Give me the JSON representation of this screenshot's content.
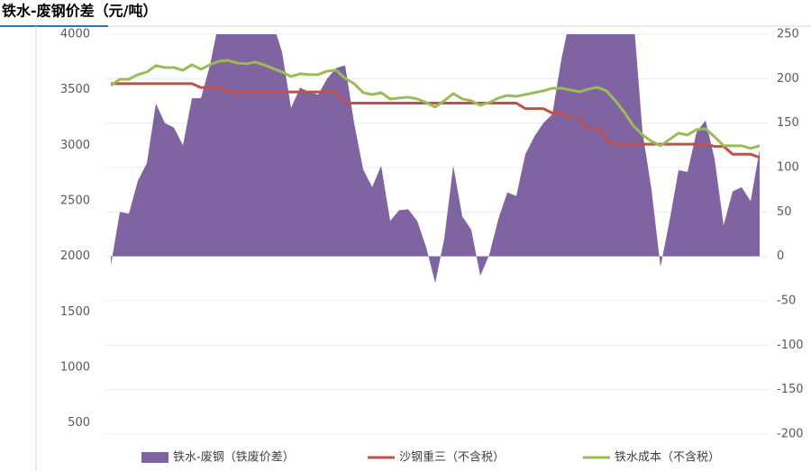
{
  "chart_data": {
    "type": "line",
    "title": "铁水-废钢价差（元/吨）",
    "categories": [
      null,
      null,
      null,
      null,
      null,
      null,
      null,
      null,
      null,
      null,
      null,
      null,
      null,
      null,
      null,
      null,
      null,
      null,
      null,
      null,
      null,
      null,
      null,
      null,
      null,
      null,
      null,
      null,
      null,
      null,
      null,
      null,
      null,
      null,
      null,
      null,
      null,
      null,
      null,
      null,
      null,
      null,
      null,
      null,
      null,
      null,
      null,
      null,
      null,
      null,
      null,
      null,
      null,
      null,
      null,
      null,
      null,
      null,
      null,
      null,
      null,
      null,
      null,
      null,
      null,
      null,
      null,
      null,
      null,
      null,
      null,
      null,
      null
    ],
    "ylim": [
      400,
      4000
    ],
    "yticks": [
      500,
      1000,
      1500,
      2000,
      2500,
      3000,
      3500,
      4000
    ],
    "y2lim": [
      -200,
      250
    ],
    "y2ticks": [
      -200,
      -150,
      -100,
      -50,
      0,
      50,
      100,
      150,
      200,
      250
    ],
    "grid": true,
    "series": [
      {
        "name": "铁水-废钢（铁废价差）",
        "type": "area",
        "axis": "y2",
        "color": "#8064a2",
        "values": [
          -10,
          50,
          48,
          85,
          105,
          172,
          150,
          145,
          125,
          178,
          178,
          215,
          265,
          270,
          270,
          270,
          270,
          270,
          262,
          230,
          167,
          190,
          185,
          182,
          200,
          212,
          215,
          150,
          98,
          78,
          102,
          40,
          52,
          53,
          40,
          10,
          -30,
          20,
          102,
          45,
          30,
          -22,
          2,
          42,
          72,
          68,
          115,
          135,
          150,
          160,
          222,
          270,
          270,
          270,
          270,
          270,
          270,
          270,
          270,
          140,
          75,
          -12,
          40,
          97,
          95,
          140,
          153,
          110,
          35,
          73,
          78,
          62,
          120
        ]
      },
      {
        "name": "沙钢重三（不含税）",
        "type": "line",
        "color": "#c0504d",
        "values": [
          3555,
          3555,
          3555,
          3555,
          3555,
          3555,
          3555,
          3555,
          3555,
          3555,
          3520,
          3520,
          3520,
          3480,
          3480,
          3480,
          3480,
          3480,
          3480,
          3480,
          3480,
          3480,
          3480,
          3480,
          3480,
          3480,
          3380,
          3380,
          3380,
          3380,
          3380,
          3380,
          3380,
          3380,
          3380,
          3380,
          3380,
          3380,
          3380,
          3380,
          3380,
          3380,
          3380,
          3380,
          3380,
          3380,
          3330,
          3330,
          3330,
          3290,
          3290,
          3250,
          3250,
          3150,
          3150,
          3060,
          3010,
          3010,
          3010,
          3010,
          3010,
          3010,
          3010,
          3010,
          3010,
          3010,
          3010,
          2990,
          2990,
          2920,
          2920,
          2920,
          2890
        ]
      },
      {
        "name": "铁水成本（不含税）",
        "type": "line",
        "color": "#9bbb59",
        "values": [
          3538,
          3595,
          3595,
          3636,
          3660,
          3717,
          3700,
          3700,
          3676,
          3725,
          3684,
          3725,
          3757,
          3765,
          3741,
          3733,
          3749,
          3725,
          3692,
          3660,
          3619,
          3644,
          3636,
          3636,
          3668,
          3676,
          3603,
          3555,
          3474,
          3457,
          3474,
          3417,
          3425,
          3433,
          3417,
          3385,
          3344,
          3401,
          3466,
          3417,
          3401,
          3360,
          3385,
          3425,
          3449,
          3441,
          3457,
          3474,
          3490,
          3514,
          3514,
          3498,
          3482,
          3506,
          3522,
          3490,
          3401,
          3296,
          3174,
          3093,
          3036,
          2996,
          3053,
          3109,
          3093,
          3142,
          3150,
          3077,
          2996,
          2996,
          2996,
          2972,
          2996
        ]
      }
    ]
  }
}
